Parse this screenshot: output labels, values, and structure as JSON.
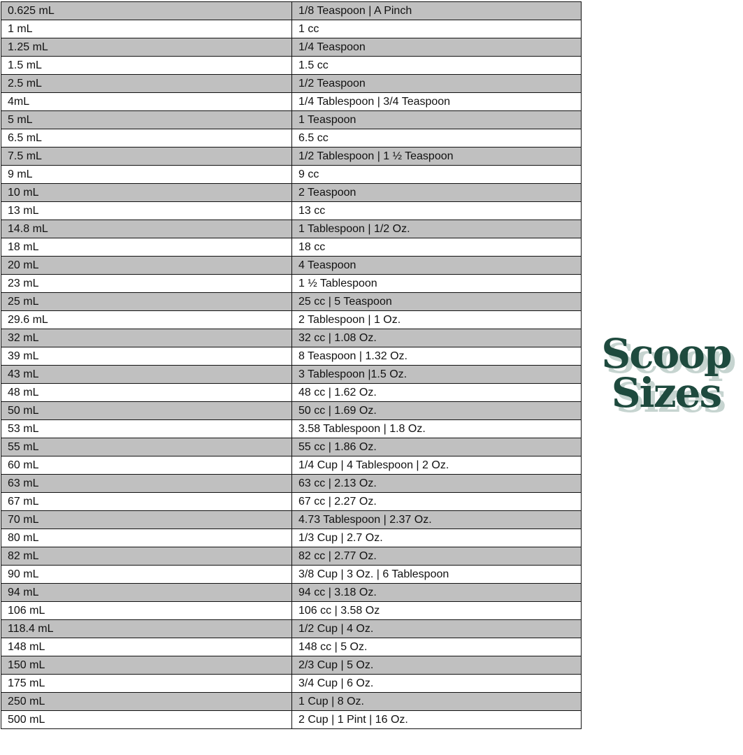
{
  "title": {
    "line1": "Scoop",
    "line2": "Sizes"
  },
  "colors": {
    "title": "#1e4a3e",
    "title_shadow": "#c6d4d0",
    "row_shade": "#c0c0c0"
  },
  "rows": [
    [
      "0.625 mL",
      "1/8 Teaspoon | A Pinch"
    ],
    [
      "1 mL",
      "1 cc"
    ],
    [
      "1.25 mL",
      "1/4 Teaspoon"
    ],
    [
      "1.5 mL",
      "1.5 cc"
    ],
    [
      "2.5 mL",
      "1/2 Teaspoon"
    ],
    [
      "4mL",
      "1/4 Tablespoon | 3/4 Teaspoon"
    ],
    [
      "5 mL",
      "1 Teaspoon"
    ],
    [
      "6.5 mL",
      "6.5 cc"
    ],
    [
      "7.5 mL",
      "1/2 Tablespoon | 1 ½ Teaspoon"
    ],
    [
      "9 mL",
      "9 cc"
    ],
    [
      "10 mL",
      "2 Teaspoon"
    ],
    [
      "13 mL",
      "13 cc"
    ],
    [
      "14.8 mL",
      "1 Tablespoon | 1/2 Oz."
    ],
    [
      "18 mL",
      "18 cc"
    ],
    [
      "20 mL",
      "4 Teaspoon"
    ],
    [
      "23 mL",
      "1 ½ Tablespoon"
    ],
    [
      "25 mL",
      "25 cc | 5 Teaspoon"
    ],
    [
      "29.6 mL",
      "2 Tablespoon | 1 Oz."
    ],
    [
      "32 mL",
      "32 cc | 1.08 Oz."
    ],
    [
      "39 mL",
      "8 Teaspoon | 1.32 Oz."
    ],
    [
      "43 mL",
      "3 Tablespoon |1.5 Oz."
    ],
    [
      "48 mL",
      "48 cc | 1.62 Oz."
    ],
    [
      "50 mL",
      "50 cc | 1.69 Oz."
    ],
    [
      "53 mL",
      "3.58 Tablespoon | 1.8 Oz."
    ],
    [
      "55 mL",
      "55 cc | 1.86 Oz."
    ],
    [
      "60 mL",
      "1/4 Cup | 4 Tablespoon | 2 Oz."
    ],
    [
      "63 mL",
      "63 cc | 2.13 Oz."
    ],
    [
      "67 mL",
      "67 cc | 2.27 Oz."
    ],
    [
      "70 mL",
      "4.73 Tablespoon | 2.37 Oz."
    ],
    [
      "80 mL",
      "1/3 Cup | 2.7 Oz."
    ],
    [
      "82 mL",
      "82 cc | 2.77 Oz."
    ],
    [
      "90 mL",
      "3/8 Cup | 3 Oz. | 6 Tablespoon"
    ],
    [
      "94 mL",
      "94 cc | 3.18 Oz."
    ],
    [
      "106 mL",
      "106 cc | 3.58 Oz"
    ],
    [
      "118.4 mL",
      "1/2 Cup | 4 Oz."
    ],
    [
      "148 mL",
      "148 cc | 5 Oz."
    ],
    [
      "150 mL",
      "2/3 Cup | 5 Oz."
    ],
    [
      "175 mL",
      "3/4 Cup | 6 Oz."
    ],
    [
      "250 mL",
      "1 Cup | 8 Oz."
    ],
    [
      "500 mL",
      "2 Cup | 1 Pint | 16 Oz."
    ]
  ]
}
